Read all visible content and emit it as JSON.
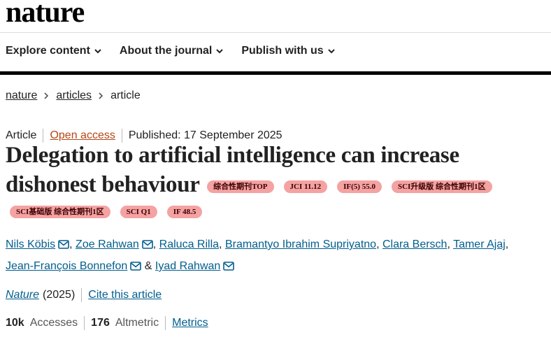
{
  "header": {
    "logo": "nature"
  },
  "nav": {
    "items": [
      "Explore content",
      "About the journal",
      "Publish with us"
    ]
  },
  "breadcrumb": [
    "nature",
    "articles",
    "article"
  ],
  "meta": {
    "type": "Article",
    "access": "Open access",
    "published": "Published: 17 September 2025"
  },
  "title": "Delegation to artificial intelligence can increase dishonest behaviour",
  "badges": [
    "综合性期刊TOP",
    "JCI 11.12",
    "IF(5) 55.0",
    "SCI升级版 综合性期刊1区",
    "SCI基础版 综合性期刊1区",
    "SCI Q1",
    "IF 48.5"
  ],
  "authors": {
    "list": [
      {
        "name": "Nils Köbis",
        "email": true
      },
      {
        "name": "Zoe Rahwan",
        "email": true
      },
      {
        "name": "Raluca Rilla",
        "email": false
      },
      {
        "name": "Bramantyo Ibrahim Supriyatno",
        "email": false
      },
      {
        "name": "Clara Bersch",
        "email": false
      },
      {
        "name": "Tamer Ajaj",
        "email": false
      },
      {
        "name": "Jean-François Bonnefon",
        "email": true
      },
      {
        "name": "Iyad Rahwan",
        "email": true
      }
    ],
    "separator": ",",
    "last_separator": "&"
  },
  "citation": {
    "journal": "Nature",
    "year": "(2025)",
    "cite": "Cite this article"
  },
  "metrics": {
    "accesses_value": "10k",
    "accesses_label": "Accesses",
    "altmetric_value": 176,
    "altmetric_label": "Altmetric",
    "link": "Metrics"
  }
}
